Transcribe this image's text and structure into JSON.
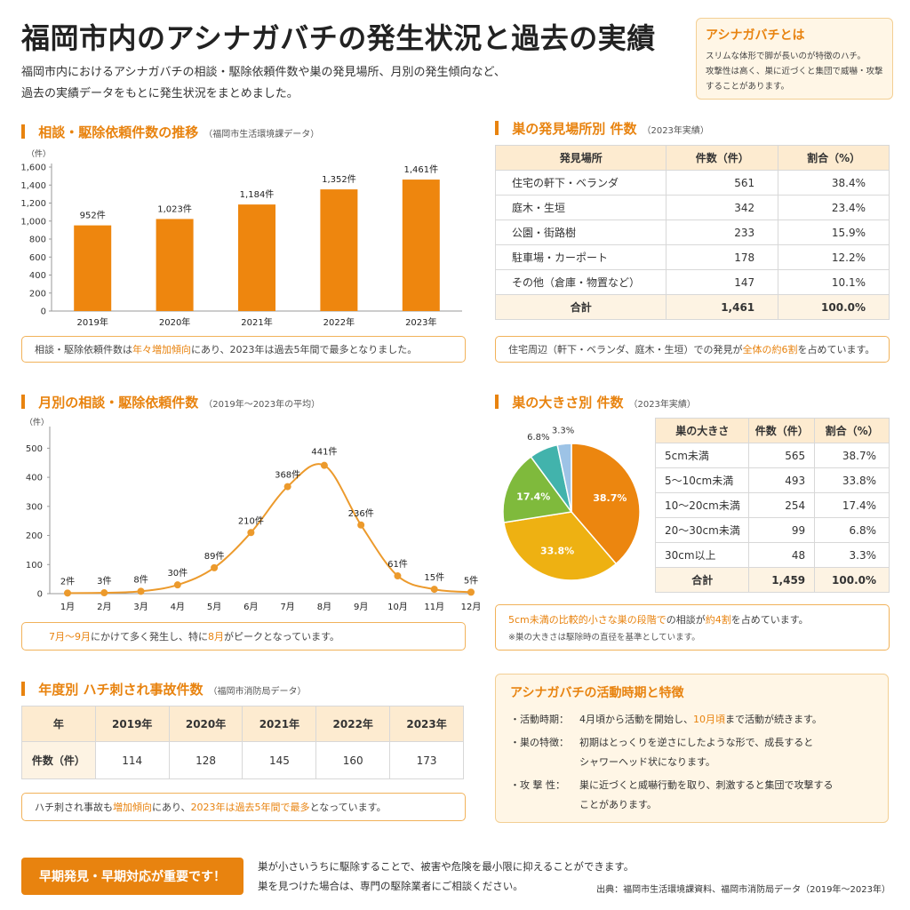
{
  "title": "福岡市内のアシナガバチの発生状況と過去の実績",
  "intro": [
    "福岡市内におけるアシナガバチの相談・駆除依頼件数や巣の発見場所、月別の発生傾向など、",
    "過去の実績データをもとに発生状況をまとめました。"
  ],
  "about": {
    "heading": "アシナガバチとは",
    "lines": [
      "スリムな体形で脚が長いのが特徴のハチ。",
      "攻撃性は高く、巣に近づくと集団で威嚇・攻撃",
      "することがあります。"
    ]
  },
  "colors": {
    "accent": "#e8830f",
    "bar": "#ee860e",
    "line": "#ec9a2c",
    "pie": [
      "#ec860f",
      "#eeb112",
      "#7fba3c",
      "#42b3ac",
      "#9dc3e6"
    ]
  },
  "yearly": {
    "title": "相談・駆除依頼件数の推移",
    "sub": "（福岡市生活環境課データ）",
    "note": {
      "pre": "相談・駆除依頼件数は",
      "hl1": "年々増加傾向",
      "mid": "にあり、2023年は過去5年間で最多となりました。"
    },
    "chart_data": {
      "type": "bar",
      "unit": "（件）",
      "categories": [
        "2019年",
        "2020年",
        "2021年",
        "2022年",
        "2023年"
      ],
      "values": [
        952,
        1023,
        1184,
        1352,
        1461
      ],
      "labels": [
        "952件",
        "1,023件",
        "1,184件",
        "1,352件",
        "1,461件"
      ],
      "ylim": [
        0,
        1600
      ],
      "yticks": [
        0,
        200,
        400,
        600,
        800,
        1000,
        1200,
        1400,
        1600
      ],
      "ytick_labels": [
        "0",
        "200",
        "400",
        "600",
        "800",
        "1,000",
        "1,200",
        "1,400",
        "1,600"
      ],
      "grid": false
    }
  },
  "place": {
    "title": "巣の発見場所別 件数",
    "sub": "（2023年実績）",
    "headers": [
      "発見場所",
      "件数（件）",
      "割合（%）"
    ],
    "rows": [
      [
        "住宅の軒下・ベランダ",
        "561",
        "38.4%"
      ],
      [
        "庭木・生垣",
        "342",
        "23.4%"
      ],
      [
        "公園・街路樹",
        "233",
        "15.9%"
      ],
      [
        "駐車場・カーポート",
        "178",
        "12.2%"
      ],
      [
        "その他（倉庫・物置など）",
        "147",
        "10.1%"
      ]
    ],
    "total": [
      "合計",
      "1,461",
      "100.0%"
    ],
    "note": {
      "pre": "住宅周辺（軒下・ベランダ、庭木・生垣）での発見が",
      "hl1": "全体の約6割",
      "post": "を占めています。"
    }
  },
  "monthly": {
    "title": "月別の相談・駆除依頼件数",
    "sub": "（2019年～2023年の平均）",
    "note": {
      "hl1": "7月～9月",
      "mid": "にかけて多く発生し、特に",
      "hl2": "8月",
      "post": "がピークとなっています。"
    },
    "chart_data": {
      "type": "line",
      "unit": "（件）",
      "categories": [
        "1月",
        "2月",
        "3月",
        "4月",
        "5月",
        "6月",
        "7月",
        "8月",
        "9月",
        "10月",
        "11月",
        "12月"
      ],
      "values": [
        2,
        3,
        8,
        30,
        89,
        210,
        368,
        441,
        236,
        61,
        15,
        5
      ],
      "labels": [
        "2件",
        "3件",
        "8件",
        "30件",
        "89件",
        "210件",
        "368件",
        "441件",
        "236件",
        "61件",
        "15件",
        "5件"
      ],
      "ylim": [
        0,
        550
      ],
      "yticks": [
        0,
        100,
        200,
        300,
        400,
        500
      ],
      "grid": false
    }
  },
  "size": {
    "title": "巣の大きさ別 件数",
    "sub": "（2023年実績）",
    "headers": [
      "巣の大きさ",
      "件数（件）",
      "割合（%）"
    ],
    "rows": [
      [
        "5cm未満",
        "565",
        "38.7%"
      ],
      [
        "5～10cm未満",
        "493",
        "33.8%"
      ],
      [
        "10～20cm未満",
        "254",
        "17.4%"
      ],
      [
        "20～30cm未満",
        "99",
        "6.8%"
      ],
      [
        "30cm以上",
        "48",
        "3.3%"
      ]
    ],
    "total": [
      "合計",
      "1,459",
      "100.0%"
    ],
    "chart_data": {
      "type": "pie",
      "categories": [
        "5cm未満",
        "5～10cm未満",
        "10～20cm未満",
        "20～30cm未満",
        "30cm以上"
      ],
      "values": [
        38.7,
        33.8,
        17.4,
        6.8,
        3.3
      ],
      "labels": [
        "38.7%",
        "33.8%",
        "17.4%",
        "6.8%",
        "3.3%"
      ]
    },
    "note": {
      "hl1": "5cm未満の比較的小さな巣の段階で",
      "mid": "の相談が",
      "hl2": "約4割",
      "post": "を占めています。"
    },
    "note2": "※巣の大きさは駆除時の直径を基準としています。"
  },
  "accident": {
    "title": "年度別 ハチ刺され事故件数",
    "sub": "（福岡市消防局データ）",
    "headers": [
      "年",
      "2019年",
      "2020年",
      "2021年",
      "2022年",
      "2023年"
    ],
    "row": [
      "件数（件）",
      "114",
      "128",
      "145",
      "160",
      "173"
    ],
    "note": {
      "pre": "ハチ刺され事故も",
      "hl1": "増加傾向",
      "mid": "にあり、",
      "hl2": "2023年は過去5年間で最多",
      "post": "となっています。"
    }
  },
  "activity": {
    "heading": "アシナガバチの活動時期と特徴",
    "items": [
      {
        "label": "活動時期：",
        "pre": "4月頃から活動を開始し、",
        "hl": "10月頃",
        "post": "まで活動が続きます。"
      },
      {
        "label": "巣の特徴：",
        "pre": "初期はとっくりを逆さにしたような形で、成長すると",
        "hl": "",
        "post": "シャワーヘッド状になります。"
      },
      {
        "label": "攻 撃 性：",
        "pre": "巣に近づくと威嚇行動を取り、刺激すると集団で攻撃する",
        "hl": "",
        "post": "ことがあります。"
      }
    ]
  },
  "footer": {
    "button": "早期発見・早期対応が重要です！",
    "lines": [
      "巣が小さいうちに駆除することで、被害や危険を最小限に抑えることができます。",
      "巣を見つけた場合は、専門の駆除業者にご相談ください。"
    ],
    "source": "出典：福岡市生活環境課資料、福岡市消防局データ（2019年～2023年）"
  }
}
